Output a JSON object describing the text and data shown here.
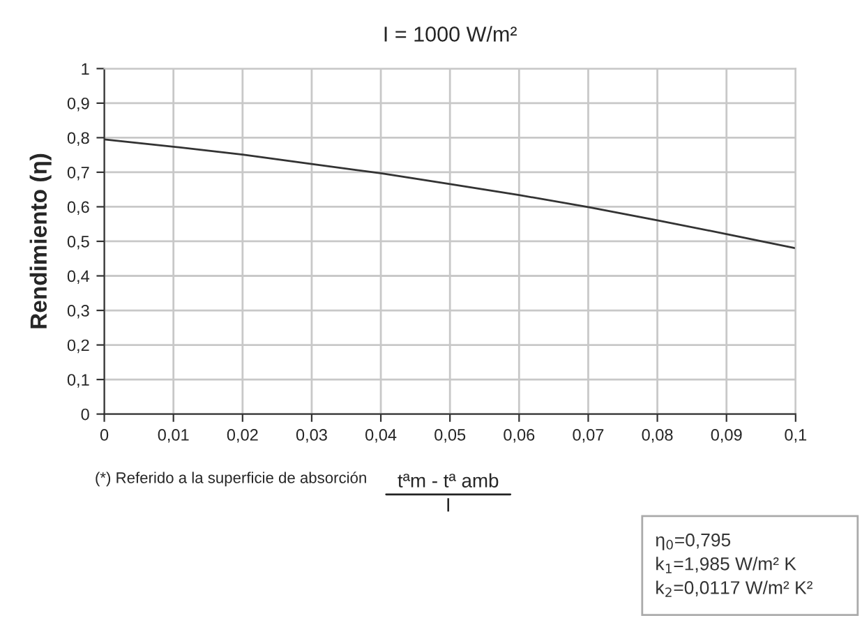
{
  "chart_data": {
    "type": "line",
    "title": "I = 1000 W/m²",
    "xlabel": "tªm - tª amb\nI",
    "ylabel": "Rendimiento (η)",
    "x": [
      0,
      0.01,
      0.02,
      0.03,
      0.04,
      0.05,
      0.06,
      0.07,
      0.08,
      0.09,
      0.1
    ],
    "series": [
      {
        "color": "#333333",
        "values": [
          0.795,
          0.774,
          0.751,
          0.724,
          0.697,
          0.666,
          0.634,
          0.599,
          0.561,
          0.521,
          0.48
        ]
      }
    ],
    "xlim": [
      0,
      0.1
    ],
    "ylim": [
      0,
      1
    ],
    "xticks": [
      0,
      {
        "value": 0.01,
        "label": "0,01"
      },
      {
        "value": 0.02,
        "label": "0,02"
      },
      {
        "value": 0.03,
        "label": "0,03"
      },
      {
        "value": 0.04,
        "label": "0,04"
      },
      {
        "value": 0.05,
        "label": "0,05"
      },
      {
        "value": 0.06,
        "label": "0,06"
      },
      {
        "value": 0.07,
        "label": "0,07"
      },
      {
        "value": 0.08,
        "label": "0,08"
      },
      {
        "value": 0.09,
        "label": "0,09"
      },
      {
        "value": 0.1,
        "label": "0,1"
      }
    ],
    "yticks": [
      0,
      {
        "value": 0.1,
        "label": "0,1"
      },
      {
        "value": 0.2,
        "label": "0,2"
      },
      {
        "value": 0.3,
        "label": "0,3"
      },
      {
        "value": 0.4,
        "label": "0,4"
      },
      {
        "value": 0.5,
        "label": "0,5"
      },
      {
        "value": 0.6,
        "label": "0,6"
      },
      {
        "value": 0.7,
        "label": "0,7"
      },
      {
        "value": 0.8,
        "label": "0,8"
      },
      {
        "value": 0.9,
        "label": "0,9"
      },
      1
    ],
    "grid": true,
    "marker": "none",
    "line_style": "solid",
    "legend": false,
    "annotations": [
      "(*) Referido a la superficie de absorción",
      "η$_{0}$=0,795\nk$_{1}$=1,985 W/m² K\nk$_{2}$=0,0117 W/m² K²"
    ]
  }
}
